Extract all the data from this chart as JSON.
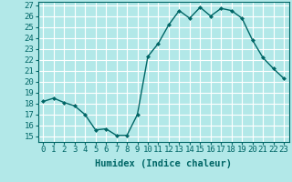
{
  "x": [
    0,
    1,
    2,
    3,
    4,
    5,
    6,
    7,
    8,
    9,
    10,
    11,
    12,
    13,
    14,
    15,
    16,
    17,
    18,
    19,
    20,
    21,
    22,
    23
  ],
  "y": [
    18.2,
    18.5,
    18.1,
    17.8,
    17.0,
    15.6,
    15.7,
    15.1,
    15.1,
    17.0,
    22.3,
    23.5,
    25.2,
    26.5,
    25.8,
    26.8,
    26.0,
    26.7,
    26.5,
    25.8,
    23.8,
    22.2,
    21.2,
    20.3
  ],
  "line_color": "#006666",
  "marker": "D",
  "marker_size": 2.0,
  "bg_color": "#b2e8e8",
  "grid_color": "#ffffff",
  "xlabel": "Humidex (Indice chaleur)",
  "xlim": [
    -0.5,
    23.5
  ],
  "ylim": [
    15,
    27
  ],
  "yticks": [
    15,
    16,
    17,
    18,
    19,
    20,
    21,
    22,
    23,
    24,
    25,
    26,
    27
  ],
  "xticks": [
    0,
    1,
    2,
    3,
    4,
    5,
    6,
    7,
    8,
    9,
    10,
    11,
    12,
    13,
    14,
    15,
    16,
    17,
    18,
    19,
    20,
    21,
    22,
    23
  ],
  "tick_fontsize": 6.5,
  "xlabel_fontsize": 7.5,
  "line_width": 1.0
}
